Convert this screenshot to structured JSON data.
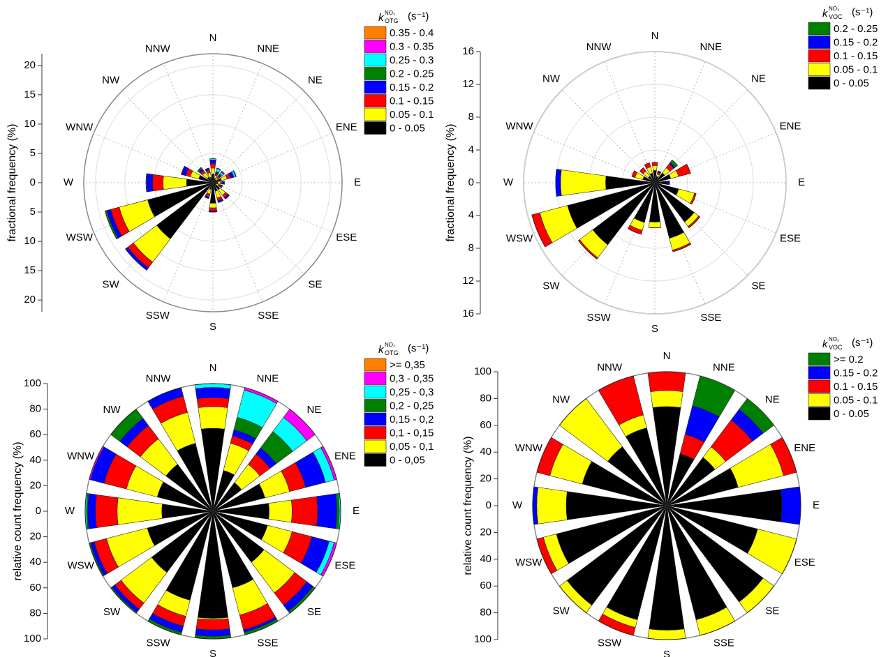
{
  "chart_data": [
    {
      "type": "polar_bar",
      "axis_label": "fractional frequency (%)",
      "legend_title": {
        "symbol": "k",
        "superscript": "NO₃",
        "subscript": "OTG",
        "unit": "(s⁻¹)"
      },
      "categories": [
        "N",
        "NNE",
        "NE",
        "ENE",
        "E",
        "ESE",
        "SE",
        "SSE",
        "S",
        "SSW",
        "SW",
        "WSW",
        "W",
        "WNW",
        "NW",
        "NNW"
      ],
      "ylim": [
        0,
        22
      ],
      "yticks": [
        0,
        5,
        10,
        15,
        20
      ],
      "grid": true,
      "series": [
        {
          "name": "0 - 0.05",
          "color": "#000000",
          "values": [
            1.5,
            0.8,
            0.6,
            1.5,
            0.8,
            0.6,
            1.5,
            1.5,
            3.5,
            1.2,
            12,
            11.5,
            4.5,
            2.5,
            1.2,
            1
          ]
        },
        {
          "name": "0.05 - 0.1",
          "color": "#ffff00",
          "values": [
            1,
            0.5,
            0.5,
            1,
            0.5,
            0.4,
            1.2,
            1.2,
            0.8,
            0.8,
            5,
            5,
            4,
            1.5,
            1,
            0.8
          ]
        },
        {
          "name": "0.1 - 0.15",
          "color": "#ff0000",
          "values": [
            0.8,
            0.3,
            0.4,
            0.6,
            0.3,
            0.3,
            0.5,
            0.5,
            0.5,
            0.5,
            1.2,
            1.5,
            1.8,
            0.8,
            0.5,
            0.5
          ]
        },
        {
          "name": "0.15 - 0.2",
          "color": "#0000ff",
          "values": [
            0.6,
            0.2,
            0.2,
            0.6,
            0.3,
            0.2,
            0.3,
            0.3,
            0.2,
            0.3,
            0.5,
            0.7,
            1,
            0.7,
            0.3,
            0.3
          ]
        },
        {
          "name": "0.2 - 0.25",
          "color": "#008000",
          "values": [
            0,
            0.2,
            0.2,
            0,
            0,
            0,
            0,
            0,
            0,
            0,
            0,
            0.3,
            0,
            0,
            0.3,
            0
          ]
        },
        {
          "name": "0.25 - 0.3",
          "color": "#00ffff",
          "values": [
            0.2,
            0.5,
            0.4,
            0.3,
            0.1,
            0.1,
            0,
            0,
            0,
            0,
            0,
            0,
            0.1,
            0,
            0,
            0
          ]
        },
        {
          "name": "0.3 - 0.35",
          "color": "#ff00ff",
          "values": [
            0,
            0.1,
            0.2,
            0.1,
            0,
            0.1,
            0,
            0,
            0,
            0,
            0,
            0,
            0,
            0.1,
            0,
            0
          ]
        },
        {
          "name": "0.35 - 0.4",
          "color": "#ff8000",
          "values": [
            0,
            0,
            0,
            0,
            0,
            0,
            0,
            0,
            0,
            0,
            0,
            0,
            0,
            0,
            0,
            0
          ]
        }
      ]
    },
    {
      "type": "polar_bar",
      "axis_label": "fractional frequency (%)",
      "legend_title": {
        "symbol": "k",
        "superscript": "NO₃",
        "subscript": "VOC",
        "unit": "(s⁻¹)"
      },
      "categories": [
        "N",
        "NNE",
        "NE",
        "ENE",
        "E",
        "ESE",
        "SE",
        "SSE",
        "S",
        "SSW",
        "SW",
        "WSW",
        "W",
        "WNW",
        "NW",
        "NNW"
      ],
      "ylim": [
        0,
        16
      ],
      "yticks": [
        0,
        4,
        8,
        12,
        16
      ],
      "grid": true,
      "series": [
        {
          "name": "0 - 0.05",
          "color": "#000000",
          "values": [
            1.5,
            0.8,
            1.5,
            2,
            1.5,
            3,
            6,
            7,
            4.8,
            5,
            9.5,
            11,
            6,
            1.5,
            1,
            1.2
          ]
        },
        {
          "name": "0.05 - 0.1",
          "color": "#ffff00",
          "values": [
            0.6,
            0.3,
            0.8,
            1,
            0,
            2,
            0.7,
            1.5,
            0.7,
            1,
            2,
            3.5,
            5.5,
            1,
            0.8,
            0.8
          ]
        },
        {
          "name": "0.1 - 0.15",
          "color": "#ff0000",
          "values": [
            0.4,
            0.2,
            0.6,
            1.5,
            0,
            0.2,
            0.2,
            0.2,
            0,
            0.5,
            0.2,
            1,
            0,
            0.4,
            0.5,
            0.5
          ]
        },
        {
          "name": "0.15 - 0.2",
          "color": "#0000ff",
          "values": [
            0,
            0.1,
            0.2,
            0,
            0.3,
            0,
            0,
            0,
            0,
            0,
            0,
            0,
            0.6,
            0,
            0,
            0
          ]
        },
        {
          "name": "0.2 - 0.25",
          "color": "#008000",
          "values": [
            0,
            0.1,
            0.4,
            0,
            0,
            0,
            0,
            0,
            0,
            0,
            0,
            0,
            0,
            0,
            0,
            0
          ]
        }
      ]
    },
    {
      "type": "polar_bar",
      "axis_label": "relative count frequency (%)",
      "legend_title": {
        "symbol": "k",
        "superscript": "NO₃",
        "subscript": "OTG",
        "unit": "(s⁻¹)"
      },
      "categories": [
        "N",
        "NNE",
        "NE",
        "ENE",
        "E",
        "ESE",
        "SE",
        "SSE",
        "S",
        "SSW",
        "SW",
        "WSW",
        "W",
        "WNW",
        "NW",
        "NNW"
      ],
      "ylim": [
        0,
        100
      ],
      "yticks": [
        0,
        20,
        40,
        60,
        80,
        100
      ],
      "grid": false,
      "series": [
        {
          "name": "0 - 0,05",
          "color": "#000000",
          "values": [
            65,
            33,
            28,
            42,
            44,
            44,
            50,
            62,
            84,
            72,
            60,
            53,
            40,
            45,
            46,
            55
          ]
        },
        {
          "name": "0,05 - 0,1",
          "color": "#ffff00",
          "values": [
            17,
            22,
            18,
            20,
            18,
            20,
            30,
            22,
            1,
            13,
            30,
            33,
            35,
            25,
            25,
            25
          ]
        },
        {
          "name": "0,1 - 0,15",
          "color": "#ff0000",
          "values": [
            7,
            6,
            10,
            13,
            20,
            16,
            12,
            12,
            8,
            8,
            6,
            10,
            17,
            18,
            13,
            13
          ]
        },
        {
          "name": "0,15 - 0,2",
          "color": "#0000ff",
          "values": [
            8,
            5,
            6,
            16,
            15,
            14,
            6,
            2,
            5,
            5,
            3,
            3,
            6,
            11,
            7,
            7
          ]
        },
        {
          "name": "0,2 - 0,25",
          "color": "#008000",
          "values": [
            0,
            10,
            16,
            0,
            2,
            0,
            2,
            2,
            2,
            2,
            1,
            1,
            1,
            0,
            9,
            0
          ]
        },
        {
          "name": "0,25 - 0,3",
          "color": "#00ffff",
          "values": [
            3,
            22,
            14,
            7,
            1,
            4,
            0,
            0,
            0,
            0,
            0,
            0,
            1,
            0,
            0,
            0
          ]
        },
        {
          "name": "0,3 - 0,35",
          "color": "#ff00ff",
          "values": [
            0,
            2,
            8,
            2,
            0,
            2,
            0,
            0,
            0,
            0,
            0,
            0,
            0,
            1,
            0,
            0
          ]
        },
        {
          "name": ">= 0,35",
          "color": "#ff8000",
          "values": [
            0,
            0,
            0,
            0,
            0,
            0,
            0,
            0,
            0,
            0,
            0,
            0,
            0,
            0,
            0,
            0
          ]
        }
      ]
    },
    {
      "type": "polar_bar",
      "axis_label": "relative count frequency (%)",
      "legend_title": {
        "symbol": "k",
        "superscript": "NO₃",
        "subscript": "VOC",
        "unit": "(s⁻¹)"
      },
      "categories": [
        "N",
        "NNE",
        "NE",
        "ENE",
        "E",
        "ESE",
        "SE",
        "SSE",
        "S",
        "SSW",
        "SW",
        "WSW",
        "W",
        "WNW",
        "NW",
        "NNW"
      ],
      "ylim": [
        0,
        100
      ],
      "yticks": [
        0,
        20,
        40,
        60,
        80,
        100
      ],
      "grid": false,
      "series": [
        {
          "name": "0 - 0.05",
          "color": "#000000",
          "values": [
            74,
            40,
            45,
            55,
            86,
            70,
            90,
            88,
            93,
            88,
            93,
            85,
            75,
            65,
            55,
            60
          ]
        },
        {
          "name": "0.05 - 0.1",
          "color": "#ffff00",
          "values": [
            12,
            0,
            10,
            35,
            0,
            30,
            10,
            12,
            7,
            6,
            7,
            10,
            22,
            25,
            45,
            10
          ]
        },
        {
          "name": "0.1 - 0.15",
          "color": "#ff0000",
          "values": [
            14,
            15,
            25,
            10,
            0,
            0,
            0,
            0,
            0,
            6,
            0,
            5,
            0,
            10,
            0,
            30
          ]
        },
        {
          "name": "0.15 - 0.2",
          "color": "#0000ff",
          "values": [
            0,
            22,
            10,
            0,
            14,
            0,
            0,
            0,
            0,
            0,
            0,
            0,
            3,
            0,
            0,
            0
          ]
        },
        {
          "name": ">= 0.2",
          "color": "#008000",
          "values": [
            0,
            23,
            10,
            0,
            0,
            0,
            0,
            0,
            0,
            0,
            0,
            0,
            0,
            0,
            0,
            0
          ]
        }
      ]
    }
  ]
}
